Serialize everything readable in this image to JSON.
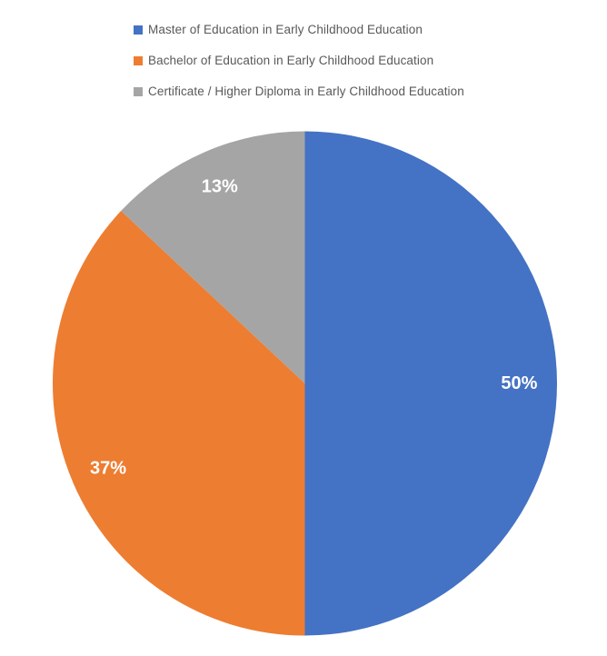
{
  "chart_data": {
    "type": "pie",
    "title": "",
    "categories": [
      "Master of Education in Early Childhood Education",
      "Bachelor of Education in Early Childhood Education",
      "Certificate / Higher Diploma in Early Childhood Education"
    ],
    "values": [
      50,
      37,
      13
    ],
    "data_labels": [
      "50%",
      "37%",
      "13%"
    ],
    "colors": [
      "#4472C4",
      "#ED7D31",
      "#A5A5A5"
    ],
    "start_angle_deg": 0,
    "direction": "clockwise",
    "legend_position": "top-left",
    "data_label_color": "#ffffff",
    "legend_text_color": "#595959",
    "background_color": "#ffffff"
  }
}
